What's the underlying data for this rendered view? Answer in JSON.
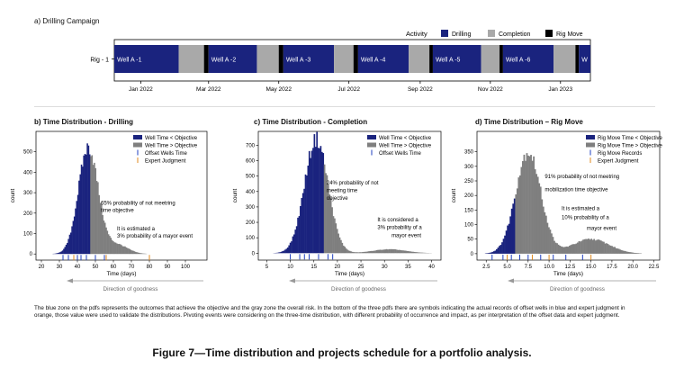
{
  "figure": {
    "caption": "The blue zone on the pdfs represents the outcomes that achieve the objective and the gray zone the overall risk. In the bottom of the three pdfs there are symbols indicating the actual records of offset wells in blue and expert judgment in orange, those value were used to validate the distributions. Pivoting events were considering on the three-time distribution, with different probability of occurrence and impact, as per interpretation of the offset data and expert judgment.",
    "title": "Figure 7—Time distribution and projects schedule for a portfolio analysis."
  },
  "colors": {
    "navy": "#1a237e",
    "gray": "#7f7f7f",
    "completion": "#a9a9a9",
    "rig": "#000000",
    "blue_tick": "#1f3fbf",
    "orange_tick": "#e08a1e"
  },
  "chart_data": [
    {
      "id": "gantt",
      "type": "gantt",
      "title": "a) Drilling Campaign",
      "y_label": "Rig - 1",
      "legend_title": "Activity",
      "legend": [
        "Drilling",
        "Completion",
        "Rig Move"
      ],
      "x_ticks": [
        "Jan 2022",
        "Mar 2022",
        "May 2022",
        "Jul 2022",
        "Sep 2022",
        "Nov 2022",
        "Jan 2023"
      ],
      "tasks": [
        {
          "label": "Well A -1",
          "activity": "Drilling",
          "start": "2021-12-09",
          "end": "2022-02-03"
        },
        {
          "activity": "Completion",
          "start": "2022-02-03",
          "end": "2022-02-25"
        },
        {
          "activity": "Rig Move",
          "start": "2022-02-25",
          "end": "2022-03-01"
        },
        {
          "label": "Well A -2",
          "activity": "Drilling",
          "start": "2022-03-01",
          "end": "2022-04-12"
        },
        {
          "activity": "Completion",
          "start": "2022-04-12",
          "end": "2022-05-01"
        },
        {
          "activity": "Rig Move",
          "start": "2022-05-01",
          "end": "2022-05-05"
        },
        {
          "label": "Well A -3",
          "activity": "Drilling",
          "start": "2022-05-05",
          "end": "2022-06-18"
        },
        {
          "activity": "Completion",
          "start": "2022-06-18",
          "end": "2022-07-05"
        },
        {
          "activity": "Rig Move",
          "start": "2022-07-05",
          "end": "2022-07-09"
        },
        {
          "label": "Well A -4",
          "activity": "Drilling",
          "start": "2022-07-09",
          "end": "2022-08-22"
        },
        {
          "activity": "Completion",
          "start": "2022-08-22",
          "end": "2022-09-09"
        },
        {
          "activity": "Rig Move",
          "start": "2022-09-09",
          "end": "2022-09-12"
        },
        {
          "label": "Well A -5",
          "activity": "Drilling",
          "start": "2022-09-12",
          "end": "2022-10-24"
        },
        {
          "activity": "Completion",
          "start": "2022-10-24",
          "end": "2022-11-09"
        },
        {
          "activity": "Rig Move",
          "start": "2022-11-09",
          "end": "2022-11-12"
        },
        {
          "label": "Well A -6",
          "activity": "Drilling",
          "start": "2022-11-12",
          "end": "2022-12-26"
        },
        {
          "activity": "Completion",
          "start": "2022-12-26",
          "end": "2023-01-14"
        },
        {
          "activity": "Rig Move",
          "start": "2023-01-14",
          "end": "2023-01-17"
        },
        {
          "label": "W",
          "activity": "Drilling",
          "start": "2023-01-17",
          "end": "2023-01-27"
        }
      ]
    },
    {
      "id": "drilling",
      "type": "histogram",
      "title": "b) Time Distribution - Drilling",
      "xlabel": "Time (days)",
      "ylabel": "count",
      "xlim": [
        17,
        112
      ],
      "ylim": [
        -30,
        600
      ],
      "x_ticks": [
        20,
        30,
        40,
        50,
        60,
        70,
        80,
        90,
        100
      ],
      "y_ticks": [
        0,
        100,
        200,
        300,
        400,
        500
      ],
      "objective": 47,
      "legend": [
        "Well Time < Objective",
        "Well Time > Objective",
        "Offset Wells Time",
        "Expert Judgment"
      ],
      "components": [
        {
          "mean": 46,
          "sd": 5.5,
          "peak": 520
        },
        {
          "mean": 62,
          "sd": 6,
          "peak": 45
        }
      ],
      "x_max": 108,
      "offset_wells": [
        32,
        35,
        40,
        42,
        45,
        50,
        55
      ],
      "expert": [
        38,
        56,
        80
      ],
      "annotations": [
        {
          "text": "65% probability of not meetring",
          "x": 53,
          "y": 240
        },
        {
          "text": "time objective",
          "x": 53,
          "y": 205
        },
        {
          "text": "It is estimated a",
          "x": 62,
          "y": 115
        },
        {
          "text": "3% probability of a mayor event",
          "x": 62,
          "y": 80
        }
      ],
      "caption_below": "Direction of goodness"
    },
    {
      "id": "completion",
      "type": "histogram",
      "title": "c) Time Distribution - Completion",
      "xlabel": "Time (days)",
      "ylabel": "count",
      "xlim": [
        3.2,
        42
      ],
      "ylim": [
        -45,
        790
      ],
      "x_ticks": [
        5,
        10,
        15,
        20,
        25,
        30,
        35,
        40
      ],
      "y_ticks": [
        0,
        100,
        200,
        300,
        400,
        500,
        600,
        700
      ],
      "objective": 17,
      "legend": [
        "Well Time < Objective",
        "Well Time > Objective",
        "Offset Wells Time"
      ],
      "components": [
        {
          "mean": 15.5,
          "sd": 2.5,
          "peak": 740
        },
        {
          "mean": 31,
          "sd": 3.5,
          "peak": 25
        }
      ],
      "x_max": 40,
      "offset_wells": [
        10,
        12,
        13,
        14,
        16,
        18,
        19
      ],
      "expert": [],
      "annotations": [
        {
          "text": "24% probability of not",
          "x": 17.7,
          "y": 445
        },
        {
          "text": "meeting time",
          "x": 17.7,
          "y": 395
        },
        {
          "text": "objective",
          "x": 17.7,
          "y": 345
        },
        {
          "text": "It is considered a",
          "x": 28.5,
          "y": 205
        },
        {
          "text": "3% probability of a",
          "x": 28.5,
          "y": 155
        },
        {
          "text": "mayor event",
          "x": 31.5,
          "y": 105
        }
      ],
      "caption_below": "Direction of goodness"
    },
    {
      "id": "rigmove",
      "type": "histogram",
      "title": "d) Time Distribution – Rig Move",
      "xlabel": "Time (days)",
      "ylabel": "count",
      "xlim": [
        1.4,
        23.2
      ],
      "ylim": [
        -22,
        420
      ],
      "x_ticks": [
        2.5,
        5.0,
        7.5,
        10.0,
        12.5,
        15.0,
        17.5,
        20.0,
        22.5
      ],
      "x_tick_labels": [
        "2.5",
        "5.0",
        "7.5",
        "10.0",
        "12.5",
        "15.0",
        "17.5",
        "20.0",
        "22.5"
      ],
      "y_ticks": [
        0,
        50,
        100,
        150,
        200,
        250,
        300,
        350
      ],
      "objective": 6,
      "legend": [
        "Rig Move Time < Objective",
        "Rig Move Time > Objective",
        "Rig Move Records",
        "Expert Judgment"
      ],
      "components": [
        {
          "mean": 7.5,
          "sd": 1.5,
          "peak": 350
        },
        {
          "mean": 15,
          "sd": 2.2,
          "peak": 50
        }
      ],
      "x_max": 22.5,
      "offset_wells": [
        3.2,
        4.5,
        5.5,
        6.5,
        7.5,
        9.0,
        10.5,
        12.0,
        14.0
      ],
      "expert": [
        5.0,
        8.0,
        10.0,
        15.0
      ],
      "annotations": [
        {
          "text": "91% probability of not meetring",
          "x": 9.5,
          "y": 260
        },
        {
          "text": "mobilization time objective",
          "x": 9.5,
          "y": 215
        },
        {
          "text": "It is estimated a",
          "x": 11.5,
          "y": 150
        },
        {
          "text": "10% probability of a",
          "x": 11.5,
          "y": 118
        },
        {
          "text": "mayor event",
          "x": 14.5,
          "y": 82
        }
      ],
      "caption_below": "Direction of goodness"
    }
  ]
}
